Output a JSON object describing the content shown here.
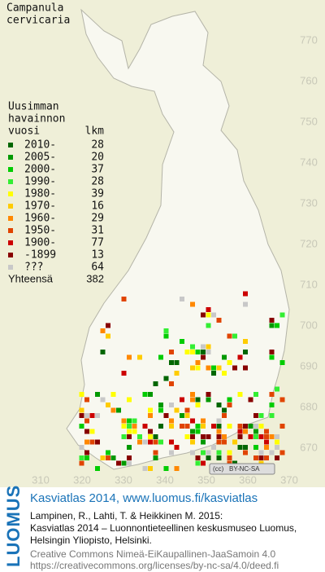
{
  "header": {
    "title_lines": [
      "Campanula",
      "cervicaria"
    ]
  },
  "legend": {
    "heading_lines": [
      "Uusimman",
      "havainnon"
    ],
    "column_year": "vuosi",
    "column_count": "lkm",
    "rows": [
      {
        "label": "2010-",
        "count": 28,
        "color": "#006600"
      },
      {
        "label": "2005-",
        "count": 20,
        "color": "#009900"
      },
      {
        "label": "2000-",
        "count": 37,
        "color": "#00cc00"
      },
      {
        "label": "1990-",
        "count": 28,
        "color": "#33ee33"
      },
      {
        "label": "1980-",
        "count": 39,
        "color": "#ffff00"
      },
      {
        "label": "1970-",
        "count": 16,
        "color": "#ffcc00"
      },
      {
        "label": "1960-",
        "count": 29,
        "color": "#ff8800"
      },
      {
        "label": "1950-",
        "count": 31,
        "color": "#e04400"
      },
      {
        "label": "1900-",
        "count": 77,
        "color": "#cc0000"
      },
      {
        "label": "-1899",
        "count": 13,
        "color": "#880000"
      },
      {
        "label": "???",
        "count": 64,
        "color": "#c8c8c8"
      }
    ],
    "total_label": "Yhteensä",
    "total": 382
  },
  "map_axes": {
    "yticks": [
      770,
      760,
      750,
      740,
      730,
      720,
      710,
      700,
      690,
      680,
      670
    ],
    "xticks": [
      310,
      320,
      330,
      340,
      350,
      360,
      370
    ]
  },
  "license_badge": "BY-NC-SA",
  "footer": {
    "logo": "LUOMUS",
    "headline": "Kasviatlas 2014, www.luomus.fi/kasviatlas",
    "citation_lines": [
      "Lampinen, R., Lahti, T. & Heikkinen M. 2015:",
      "Kasviatlas 2014 – Luonnontieteellinen keskusmuseo Luomus,",
      "Helsingin Yliopisto, Helsinki."
    ],
    "license_lines": [
      "Creative Commons Nimeä-EiKaupallinen-JaaSamoin 4.0",
      "https://creativecommons.org/licenses/by-nc-sa/4.0/deed.fi"
    ]
  }
}
